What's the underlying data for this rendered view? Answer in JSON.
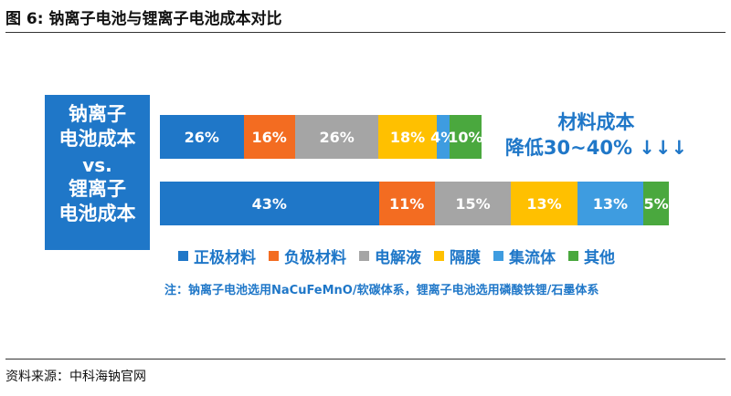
{
  "figure_title": "图 6:  钠离子电池与锂离子电池成本对比",
  "source": "资料来源：中科海钠官网",
  "left_label": {
    "top": "钠离子",
    "top2": "电池成本",
    "vs": "vs.",
    "bottom": "锂离子",
    "bottom2": "电池成本"
  },
  "note_right": {
    "line1": "材料成本",
    "line2": "降低30~40% ↓↓↓"
  },
  "footnote": "注：钠离子电池选用NaCuFeMnO/软碳体系，锂离子电池选用磷酸铁锂/石墨体系",
  "colors": {
    "正极材料": "#1f77c8",
    "负极材料": "#f36c21",
    "电解液": "#a5a5a5",
    "隔膜": "#ffc000",
    "集流体": "#3e9ce0",
    "其他": "#4aa83e"
  },
  "chart_data": {
    "type": "bar",
    "orientation": "horizontal",
    "stacked": true,
    "categories": [
      "钠离子电池成本",
      "锂离子电池成本"
    ],
    "series": [
      {
        "name": "正极材料",
        "values": [
          26,
          43
        ],
        "labels": [
          "26%",
          "43%"
        ]
      },
      {
        "name": "负极材料",
        "values": [
          16,
          11
        ],
        "labels": [
          "16%",
          "11%"
        ]
      },
      {
        "name": "电解液",
        "values": [
          26,
          15
        ],
        "labels": [
          "26%",
          "15%"
        ]
      },
      {
        "name": "隔膜",
        "values": [
          18,
          13
        ],
        "labels": [
          "18%",
          "13%"
        ]
      },
      {
        "name": "集流体",
        "values": [
          4,
          13
        ],
        "labels": [
          "4%",
          "13%"
        ]
      },
      {
        "name": "其他",
        "values": [
          10,
          5
        ],
        "labels": [
          "10%",
          "5%"
        ]
      }
    ],
    "legend_position": "bottom",
    "grid": false
  }
}
